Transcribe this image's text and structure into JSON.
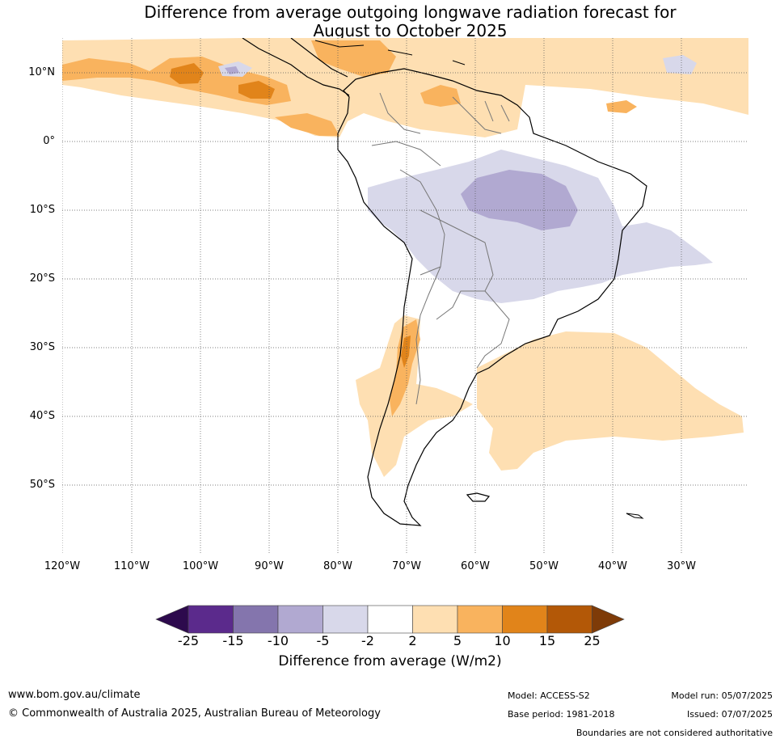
{
  "title": {
    "line1": "Difference from average outgoing longwave radiation forecast for",
    "line2": "August to October 2025"
  },
  "map": {
    "projection": "equirectangular",
    "lon_range": [
      -120,
      -20
    ],
    "lat_range": [
      -60,
      15
    ],
    "lat_ticks": [
      "10°N",
      "0°",
      "10°S",
      "20°S",
      "30°S",
      "40°S",
      "50°S"
    ],
    "lon_ticks": [
      "120°W",
      "110°W",
      "100°W",
      "90°W",
      "80°W",
      "70°W",
      "60°W",
      "50°W",
      "40°W",
      "30°W"
    ],
    "gridlines": true
  },
  "colorbar": {
    "labels": [
      "-25",
      "-15",
      "-10",
      "-5",
      "-2",
      "2",
      "5",
      "10",
      "15",
      "25"
    ],
    "colors": [
      "#2d0a4d",
      "#5b2a8c",
      "#8475ad",
      "#b1a9d1",
      "#d8d8ea",
      "#ffffff",
      "#fedfb2",
      "#f9b35e",
      "#e1841a",
      "#b35807",
      "#7e3b08"
    ],
    "title": "Difference from average (W/m2)"
  },
  "footer": {
    "url": "www.bom.gov.au/climate",
    "copyright": "© Commonwealth of Australia 2025, Australian Bureau of Meteorology",
    "model": "Model: ACCESS-S2",
    "base_period": "Base period: 1981-2018",
    "model_run": "Model run: 05/07/2025",
    "issued": "Issued: 07/07/2025",
    "disclaimer": "Boundaries are not considered authoritative"
  }
}
